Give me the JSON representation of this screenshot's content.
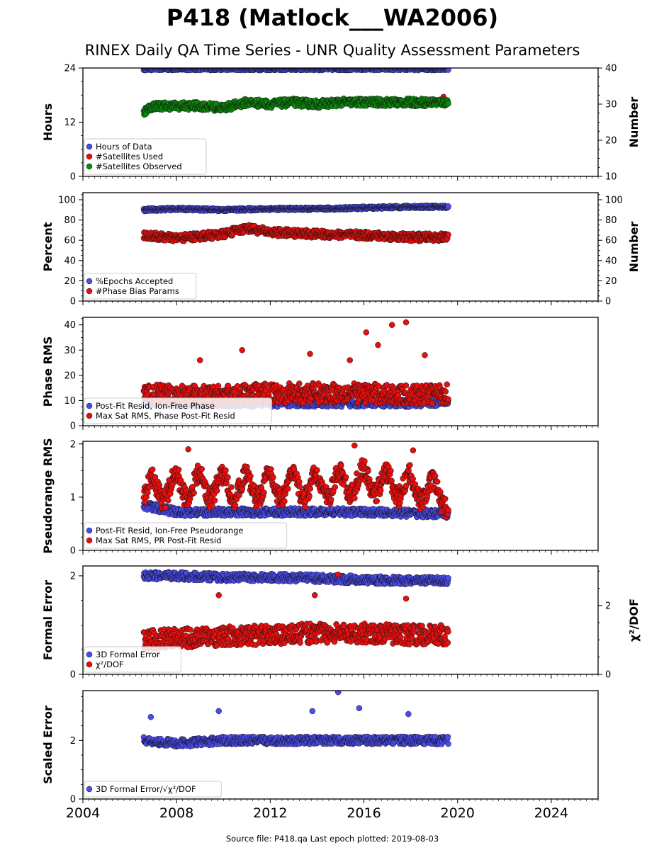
{
  "title": "P418 (Matlock___WA2006)",
  "subtitle": "RINEX Daily QA Time Series - UNR Quality Assessment Parameters",
  "footer": "Source file: P418.qa Last epoch plotted: 2019-08-03",
  "colors": {
    "blue": "#4b4bef",
    "red": "#e60f0f",
    "green": "#0b8a0b"
  },
  "x_axis": {
    "ticks": [
      2004,
      2008,
      2012,
      2016,
      2020,
      2024
    ],
    "xlim": [
      2004,
      2026
    ]
  },
  "chart_data": [
    {
      "type": "scatter",
      "ylabel": "Hours",
      "ylabel_right": "Number",
      "ylim": [
        0,
        24
      ],
      "yticks": [
        0,
        12,
        24
      ],
      "ylim_right": [
        10,
        40
      ],
      "yticks_right": [
        10,
        20,
        30,
        40
      ],
      "legend_loc": "lower-left",
      "series": [
        {
          "name": "Hours of Data",
          "color": "blue",
          "axis": "left",
          "x": [
            2006.6,
            2008,
            2010,
            2012,
            2014,
            2016,
            2018,
            2019.6
          ],
          "y": [
            23.8,
            23.8,
            23.8,
            23.8,
            23.8,
            23.8,
            23.8,
            23.8
          ]
        },
        {
          "name": "#Satellites Used",
          "color": "red",
          "axis": "right",
          "x": [
            2009.7,
            2019.4
          ],
          "y": [
            30.0,
            32.0
          ]
        },
        {
          "name": "#Satellites Observed",
          "color": "green",
          "axis": "right",
          "x": [
            2006.6,
            2007,
            2008,
            2009,
            2010,
            2011,
            2012,
            2013,
            2014,
            2015,
            2016,
            2017,
            2018,
            2019,
            2019.6
          ],
          "y": [
            28.0,
            29.5,
            29.5,
            29.5,
            29.0,
            30.5,
            30.0,
            30.5,
            30.0,
            30.5,
            30.5,
            30.5,
            30.5,
            30.5,
            30.5
          ]
        }
      ]
    },
    {
      "type": "scatter",
      "ylabel": "Percent",
      "ylabel_right": "Number",
      "ylim": [
        0,
        107
      ],
      "yticks": [
        0,
        20,
        40,
        60,
        80,
        100
      ],
      "ylim_right": [
        0,
        107
      ],
      "yticks_right": [
        0,
        20,
        40,
        60,
        80,
        100
      ],
      "legend_loc": "lower-left",
      "series": [
        {
          "name": "%Epochs Accepted",
          "color": "blue",
          "axis": "left",
          "x": [
            2006.6,
            2008,
            2010,
            2012,
            2014,
            2016,
            2018,
            2019.6
          ],
          "y": [
            90,
            91,
            90,
            91,
            91,
            92,
            93,
            93
          ]
        },
        {
          "name": "#Phase Bias Params",
          "color": "red",
          "axis": "right",
          "x": [
            2006.6,
            2008,
            2010,
            2011,
            2012,
            2014,
            2016,
            2018,
            2019.6
          ],
          "y": [
            65,
            62,
            66,
            72,
            68,
            66,
            65,
            63,
            63
          ]
        }
      ]
    },
    {
      "type": "scatter",
      "ylabel": "Phase RMS",
      "ylim": [
        0,
        43
      ],
      "yticks": [
        0,
        10,
        20,
        30,
        40
      ],
      "legend_loc": "lower-left",
      "series": [
        {
          "name": "Post-Fit Resid, Ion-Free Phase",
          "color": "blue",
          "axis": "left",
          "x": [
            2006.6,
            2008,
            2010,
            2012,
            2014,
            2016,
            2018,
            2019.6
          ],
          "y": [
            9.5,
            9.0,
            9.0,
            9.0,
            9.0,
            9.0,
            9.0,
            9.5
          ]
        },
        {
          "name": "Max Sat RMS, Phase Post-Fit Resid",
          "color": "red",
          "axis": "right",
          "x": [
            2006.6,
            2008,
            2010,
            2012,
            2014,
            2016,
            2018,
            2019.6
          ],
          "y": [
            13,
            12,
            12,
            13,
            13,
            13,
            12,
            13
          ],
          "outliers_x": [
            2009,
            2010.8,
            2013.7,
            2015.4,
            2016.1,
            2016.6,
            2017.2,
            2017.8,
            2018.6
          ],
          "outliers_y": [
            26,
            30,
            28.5,
            26,
            37,
            32,
            40,
            41,
            28
          ]
        }
      ]
    },
    {
      "type": "scatter",
      "ylabel": "Pseudorange RMS",
      "ylim": [
        0,
        2.05
      ],
      "yticks": [
        0,
        1,
        2
      ],
      "legend_loc": "lower-left",
      "series": [
        {
          "name": "Post-Fit Resid, Ion-Free Pseudorange",
          "color": "blue",
          "axis": "left",
          "x": [
            2006.6,
            2008,
            2010,
            2012,
            2014,
            2016,
            2018,
            2019.6
          ],
          "y": [
            0.85,
            0.72,
            0.72,
            0.72,
            0.72,
            0.72,
            0.7,
            0.68
          ]
        },
        {
          "name": "Max Sat RMS, PR Post-Fit Resid",
          "color": "red",
          "axis": "right",
          "x": [
            2006.6,
            2008,
            2010,
            2012,
            2014,
            2016,
            2018,
            2019.6
          ],
          "y": [
            1.1,
            1.2,
            1.2,
            1.2,
            1.2,
            1.3,
            1.2,
            1.0
          ],
          "outliers_x": [
            2008.5,
            2015.6,
            2018.1
          ],
          "outliers_y": [
            1.9,
            1.97,
            1.88
          ]
        }
      ]
    },
    {
      "type": "scatter",
      "ylabel": "Formal Error",
      "ylabel_right": "χ²/DOF",
      "ylim": [
        0,
        2.2
      ],
      "yticks": [
        0,
        2
      ],
      "ylim_right": [
        0,
        3.15
      ],
      "yticks_right": [
        0,
        2
      ],
      "legend_loc": "lower-left",
      "series": [
        {
          "name": "3D Formal Error",
          "color": "blue",
          "axis": "left",
          "x": [
            2006.6,
            2008,
            2010,
            2012,
            2014,
            2016,
            2018,
            2019.6
          ],
          "y": [
            2.0,
            2.0,
            1.97,
            1.97,
            1.95,
            1.92,
            1.9,
            1.9
          ]
        },
        {
          "name": "χ²/DOF",
          "color": "red",
          "axis": "right",
          "x": [
            2006.6,
            2008,
            2010,
            2012,
            2014,
            2016,
            2018,
            2019.6
          ],
          "y": [
            1.0,
            1.05,
            1.1,
            1.15,
            1.2,
            1.2,
            1.15,
            1.15
          ],
          "outliers_x": [
            2009.8,
            2013.9,
            2014.9,
            2017.8
          ],
          "outliers_y": [
            2.3,
            2.3,
            2.9,
            2.2
          ]
        }
      ]
    },
    {
      "type": "scatter",
      "ylabel": "Scaled Error",
      "ylim": [
        0,
        3.7
      ],
      "yticks": [
        0,
        2
      ],
      "legend_loc": "lower-left",
      "series": [
        {
          "name": "3D Formal Error/√χ²/DOF",
          "color": "blue",
          "axis": "left",
          "x": [
            2006.6,
            2008,
            2010,
            2012,
            2014,
            2016,
            2018,
            2019.6
          ],
          "y": [
            2.0,
            1.9,
            2.0,
            2.0,
            2.0,
            2.0,
            2.0,
            2.0
          ],
          "outliers_x": [
            2006.9,
            2009.8,
            2013.8,
            2014.9,
            2015.8,
            2017.9
          ],
          "outliers_y": [
            2.8,
            3.0,
            3.0,
            3.65,
            3.1,
            2.9
          ]
        }
      ]
    }
  ]
}
